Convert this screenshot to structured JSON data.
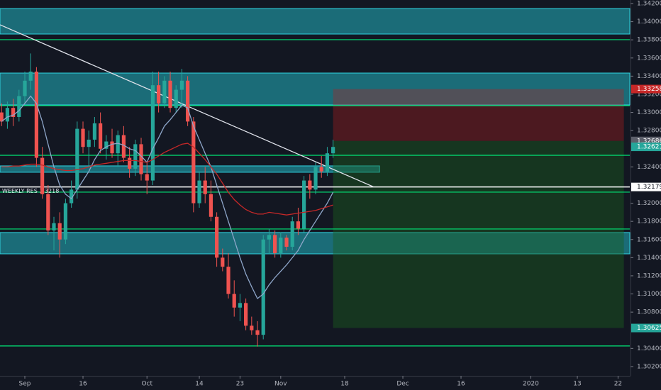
{
  "chart_data": {
    "type": "candlestick",
    "xlim": [
      -0.27,
      108.02
    ],
    "ylim": [
      1.30098,
      1.34239
    ],
    "xticks": [
      {
        "value": 4,
        "label": "Sep"
      },
      {
        "value": 14,
        "label": "16"
      },
      {
        "value": 25,
        "label": "Oct"
      },
      {
        "value": 34,
        "label": "14"
      },
      {
        "value": 41,
        "label": "23"
      },
      {
        "value": 48,
        "label": "Nov"
      },
      {
        "value": 59,
        "label": "18"
      },
      {
        "value": 69,
        "label": "Dec"
      },
      {
        "value": 79,
        "label": "16"
      },
      {
        "value": 91,
        "label": "2020"
      },
      {
        "value": 99,
        "label": "13"
      },
      {
        "value": 106,
        "label": "22"
      }
    ],
    "yticks": [
      {
        "value": 1.342,
        "label": "1.34200"
      },
      {
        "value": 1.34,
        "label": "1.34000"
      },
      {
        "value": 1.338,
        "label": "1.33800"
      },
      {
        "value": 1.336,
        "label": "1.33600"
      },
      {
        "value": 1.334,
        "label": "1.33400"
      },
      {
        "value": 1.332,
        "label": "1.33200"
      },
      {
        "value": 1.33,
        "label": "1.33000"
      },
      {
        "value": 1.328,
        "label": "1.32800"
      },
      {
        "value": 1.324,
        "label": "1.32400"
      },
      {
        "value": 1.32,
        "label": "1.32000"
      },
      {
        "value": 1.318,
        "label": "1.31800"
      },
      {
        "value": 1.316,
        "label": "1.31600"
      },
      {
        "value": 1.314,
        "label": "1.31400"
      },
      {
        "value": 1.312,
        "label": "1.31200"
      },
      {
        "value": 1.31,
        "label": "1.31000"
      },
      {
        "value": 1.308,
        "label": "1.30800"
      },
      {
        "value": 1.304,
        "label": "1.30400"
      },
      {
        "value": 1.302,
        "label": "1.30200"
      }
    ],
    "up_color": "#26a69a",
    "down_color": "#ef5350",
    "open": [
      1.33,
      1.329,
      1.3305,
      1.3295,
      1.3318,
      1.3335,
      1.3345,
      1.325,
      1.321,
      1.317,
      1.3178,
      1.316,
      1.32,
      1.3215,
      1.3282,
      1.3262,
      1.327,
      1.3288,
      1.326,
      1.3268,
      1.3255,
      1.3275,
      1.325,
      1.3238,
      1.3265,
      1.3232,
      1.3225,
      1.333,
      1.331,
      1.3335,
      1.3305,
      1.3325,
      1.3335,
      1.329,
      1.32,
      1.3225,
      1.321,
      1.3185,
      1.314,
      1.313,
      1.31,
      1.3085,
      1.309,
      1.3065,
      1.306,
      1.3055,
      1.316,
      1.3165,
      1.3145,
      1.3162,
      1.3152,
      1.318,
      1.3172,
      1.3225,
      1.3215,
      1.324,
      1.3235,
      1.3255
    ],
    "high": [
      1.331,
      1.3312,
      1.3315,
      1.3325,
      1.3345,
      1.3365,
      1.335,
      1.3262,
      1.322,
      1.3185,
      1.319,
      1.3205,
      1.3225,
      1.329,
      1.329,
      1.328,
      1.3295,
      1.33,
      1.3275,
      1.3282,
      1.328,
      1.3285,
      1.3262,
      1.327,
      1.3272,
      1.3245,
      1.3345,
      1.3345,
      1.334,
      1.3345,
      1.333,
      1.3348,
      1.334,
      1.3295,
      1.3235,
      1.324,
      1.3225,
      1.319,
      1.315,
      1.3145,
      1.3115,
      1.31,
      1.3095,
      1.3075,
      1.307,
      1.3165,
      1.3172,
      1.317,
      1.3168,
      1.3165,
      1.3185,
      1.3195,
      1.323,
      1.3232,
      1.3245,
      1.3252,
      1.3262,
      1.327
    ],
    "low": [
      1.3285,
      1.3282,
      1.3285,
      1.329,
      1.331,
      1.3325,
      1.324,
      1.3205,
      1.3165,
      1.3148,
      1.314,
      1.3155,
      1.3195,
      1.3205,
      1.3255,
      1.324,
      1.3262,
      1.3255,
      1.3248,
      1.325,
      1.324,
      1.3245,
      1.3228,
      1.323,
      1.3225,
      1.321,
      1.322,
      1.33,
      1.3305,
      1.33,
      1.33,
      1.3305,
      1.3285,
      1.319,
      1.3195,
      1.32,
      1.318,
      1.313,
      1.3125,
      1.3095,
      1.3075,
      1.307,
      1.306,
      1.3055,
      1.3042,
      1.305,
      1.3145,
      1.314,
      1.314,
      1.3148,
      1.3148,
      1.3165,
      1.3168,
      1.3205,
      1.321,
      1.3228,
      1.323,
      1.325
    ],
    "close": [
      1.329,
      1.3305,
      1.3295,
      1.3318,
      1.3335,
      1.3345,
      1.325,
      1.321,
      1.317,
      1.3178,
      1.316,
      1.32,
      1.3215,
      1.3282,
      1.3262,
      1.327,
      1.3288,
      1.326,
      1.3268,
      1.3255,
      1.3275,
      1.325,
      1.3238,
      1.3265,
      1.3232,
      1.3225,
      1.333,
      1.331,
      1.3335,
      1.3305,
      1.3325,
      1.3335,
      1.329,
      1.32,
      1.3225,
      1.321,
      1.3185,
      1.314,
      1.313,
      1.31,
      1.3085,
      1.309,
      1.3065,
      1.306,
      1.3055,
      1.316,
      1.3165,
      1.3145,
      1.3162,
      1.3152,
      1.318,
      1.3172,
      1.3225,
      1.3215,
      1.324,
      1.3235,
      1.3255,
      1.3262
    ],
    "moving_averages": [
      {
        "color": "#8ea6c9",
        "values": [
          1.329,
          1.3295,
          1.3297,
          1.3302,
          1.331,
          1.3318,
          1.331,
          1.329,
          1.3265,
          1.324,
          1.322,
          1.321,
          1.3205,
          1.3215,
          1.3225,
          1.3235,
          1.3248,
          1.3258,
          1.3262,
          1.3265,
          1.3266,
          1.3264,
          1.326,
          1.3258,
          1.3252,
          1.3245,
          1.326,
          1.3272,
          1.3285,
          1.3292,
          1.33,
          1.3308,
          1.3305,
          1.3285,
          1.327,
          1.3255,
          1.324,
          1.322,
          1.32,
          1.318,
          1.316,
          1.314,
          1.3122,
          1.3108,
          1.3095,
          1.31,
          1.311,
          1.3118,
          1.3125,
          1.3132,
          1.314,
          1.3148,
          1.316,
          1.317,
          1.318,
          1.319,
          1.32,
          1.3212
        ]
      },
      {
        "color": "#c62828",
        "values": [
          1.324,
          1.324,
          1.3241,
          1.3241,
          1.3242,
          1.3243,
          1.3243,
          1.3242,
          1.324,
          1.3238,
          1.3237,
          1.3236,
          1.3236,
          1.3237,
          1.3238,
          1.324,
          1.3242,
          1.3243,
          1.3244,
          1.3245,
          1.3246,
          1.3247,
          1.3247,
          1.3247,
          1.3246,
          1.3245,
          1.3248,
          1.3252,
          1.3256,
          1.3259,
          1.3262,
          1.3265,
          1.3266,
          1.3262,
          1.3255,
          1.3248,
          1.324,
          1.3232,
          1.3222,
          1.3212,
          1.3204,
          1.3198,
          1.3193,
          1.319,
          1.3188,
          1.3188,
          1.319,
          1.3189,
          1.3188,
          1.3187,
          1.3188,
          1.3189,
          1.319,
          1.3191,
          1.3192,
          1.3194,
          1.3196,
          1.3198
        ]
      }
    ],
    "zones": [
      {
        "from": 1.34145,
        "to": 1.33864
      },
      {
        "from": 1.33434,
        "to": 1.33083
      },
      {
        "from": 1.31677,
        "to": 1.31442
      },
      {
        "from": 1.32411,
        "to": 1.32341,
        "end": 65
      }
    ],
    "zone_color": "#1f8a96",
    "levels": [
      {
        "value": 1.33802,
        "color": "#00e676"
      },
      {
        "value": 1.33075,
        "color": "#00e676"
      },
      {
        "value": 1.32528,
        "color": "#00e676"
      },
      {
        "value": 1.32122,
        "color": "#00e676"
      },
      {
        "value": 1.31716,
        "color": "#00e676"
      },
      {
        "value": 1.30427,
        "color": "#00e676"
      },
      {
        "value": 1.32179,
        "color": "#ffffff"
      }
    ],
    "trendline": {
      "x": [
        -0.27,
        64
      ],
      "y": [
        1.33966,
        1.32179
      ]
    },
    "position": {
      "start": 57,
      "end": 107,
      "entry": 1.32686,
      "stop": 1.33258,
      "target": 1.30625
    },
    "price_labels": [
      {
        "value": 1.33258,
        "color": "#c62828"
      },
      {
        "value": 1.32686,
        "color": "#5d606b"
      },
      {
        "value": 1.32621,
        "color": "#26a69a"
      },
      {
        "value": 1.32179,
        "color": "#ffffff"
      },
      {
        "value": 1.30625,
        "color": "#26a69a"
      }
    ],
    "annotation": "WEEKLY RES 1.3218"
  }
}
